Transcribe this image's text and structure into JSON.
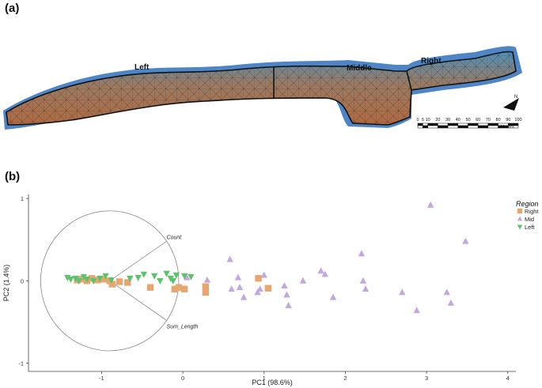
{
  "panel_a": {
    "label": "(a)",
    "regions": [
      "Left",
      "Middle",
      "Right"
    ],
    "scale_ticks": [
      "0",
      "5",
      "10",
      "20",
      "30",
      "40",
      "50",
      "60",
      "70",
      "80",
      "90",
      "100"
    ],
    "scale_unit": "Meters",
    "north_symbol": "N"
  },
  "panel_b": {
    "label": "(b)"
  },
  "chart_data": {
    "type": "scatter",
    "xlabel": "PC1 (98.6%)",
    "ylabel": "PC2 (1.4%)",
    "xlim": [
      -1.9,
      4.1
    ],
    "ylim": [
      -1.1,
      1.05
    ],
    "x_ticks": [
      -1,
      0,
      1,
      2,
      3,
      4
    ],
    "y_ticks": [
      -1,
      0,
      1
    ],
    "legend_title": "Region",
    "legend_position": "top-right",
    "loadings": [
      {
        "name": "Count",
        "x": 0.7,
        "y": 0.48
      },
      {
        "name": "Sum_Length",
        "x": 0.7,
        "y": -0.48
      }
    ],
    "circle": {
      "cx": -0.9,
      "cy": 0.0,
      "r": 0.85
    },
    "series": [
      {
        "name": "Right",
        "marker": "square",
        "color": "#E8A66E",
        "points": [
          [
            -1.3,
            0.01
          ],
          [
            -1.25,
            0.02
          ],
          [
            -1.18,
            0.0
          ],
          [
            -1.12,
            0.03
          ],
          [
            -1.05,
            0.01
          ],
          [
            -0.98,
            0.02
          ],
          [
            -0.9,
            0.0
          ],
          [
            -0.87,
            -0.04
          ],
          [
            -0.78,
            -0.01
          ],
          [
            -0.68,
            -0.02
          ],
          [
            -0.4,
            -0.08
          ],
          [
            -0.1,
            -0.1
          ],
          [
            -0.05,
            -0.08
          ],
          [
            0.02,
            -0.1
          ],
          [
            0.28,
            -0.07
          ],
          [
            0.28,
            -0.14
          ],
          [
            0.93,
            0.03
          ],
          [
            1.05,
            -0.09
          ]
        ]
      },
      {
        "name": "Mid",
        "marker": "triangle-up",
        "color": "#C3A8E0",
        "points": [
          [
            0.05,
            0.04
          ],
          [
            0.3,
            0.01
          ],
          [
            0.58,
            0.26
          ],
          [
            0.6,
            -0.1
          ],
          [
            0.68,
            0.04
          ],
          [
            0.7,
            -0.08
          ],
          [
            0.75,
            -0.2
          ],
          [
            0.92,
            -0.14
          ],
          [
            0.95,
            -0.1
          ],
          [
            1.0,
            0.07
          ],
          [
            1.25,
            -0.06
          ],
          [
            1.28,
            -0.17
          ],
          [
            1.3,
            -0.3
          ],
          [
            1.48,
            0.0
          ],
          [
            1.7,
            0.12
          ],
          [
            1.75,
            0.08
          ],
          [
            1.85,
            -0.2
          ],
          [
            2.2,
            0.33
          ],
          [
            2.22,
            0.0
          ],
          [
            2.25,
            -0.1
          ],
          [
            2.7,
            -0.14
          ],
          [
            2.88,
            -0.36
          ],
          [
            3.05,
            0.92
          ],
          [
            3.25,
            -0.14
          ],
          [
            3.3,
            -0.27
          ],
          [
            3.48,
            0.48
          ]
        ]
      },
      {
        "name": "Left",
        "marker": "triangle-down",
        "color": "#5BC36B",
        "points": [
          [
            -1.42,
            0.04
          ],
          [
            -1.38,
            0.02
          ],
          [
            -1.32,
            0.03
          ],
          [
            -1.28,
            0.0
          ],
          [
            -1.22,
            0.05
          ],
          [
            -1.18,
            0.02
          ],
          [
            -1.1,
            0.0
          ],
          [
            -1.02,
            0.03
          ],
          [
            -0.95,
            0.06
          ],
          [
            -0.88,
            0.01
          ],
          [
            -0.65,
            0.03
          ],
          [
            -0.55,
            0.04
          ],
          [
            -0.48,
            0.08
          ],
          [
            -0.35,
            0.06
          ],
          [
            -0.28,
            0.0
          ],
          [
            -0.2,
            0.09
          ],
          [
            -0.15,
            0.03
          ],
          [
            -0.12,
            0.0
          ],
          [
            -0.08,
            0.07
          ],
          [
            0.02,
            0.06
          ],
          [
            0.1,
            0.05
          ]
        ]
      }
    ]
  }
}
